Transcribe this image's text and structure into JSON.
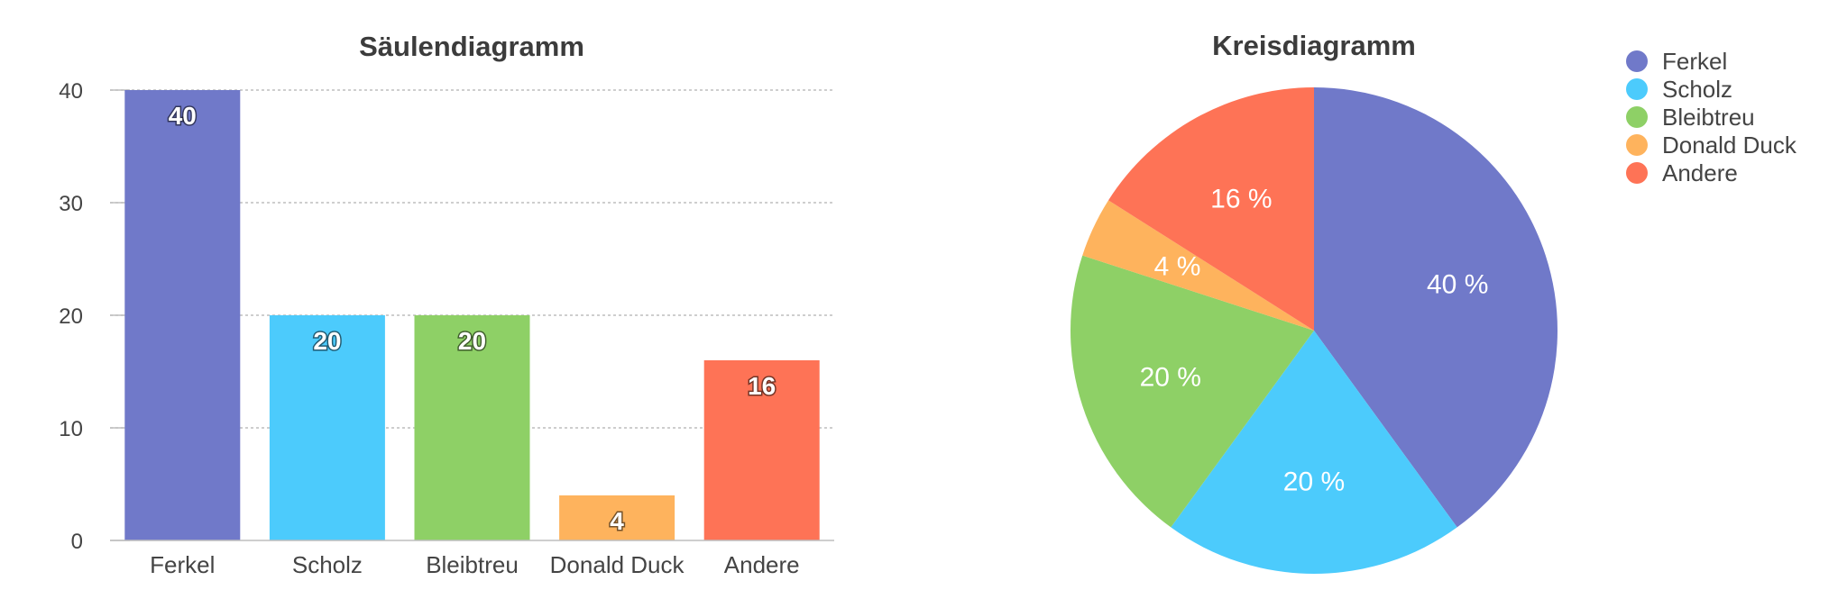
{
  "chart_data": [
    {
      "type": "bar",
      "title": "Säulendiagramm",
      "categories": [
        "Ferkel",
        "Scholz",
        "Bleibtreu",
        "Donald Duck",
        "Andere"
      ],
      "values": [
        40,
        20,
        20,
        4,
        16
      ],
      "data_labels": [
        "40",
        "20",
        "20",
        "4",
        "16"
      ],
      "colors": [
        "#7079c9",
        "#4ccbfc",
        "#8ed066",
        "#feb35d",
        "#fe7356"
      ],
      "ylim": [
        0,
        40
      ],
      "yticks": [
        "0",
        "10",
        "20",
        "30",
        "40"
      ],
      "grid": true,
      "xlabel": "",
      "ylabel": ""
    },
    {
      "type": "pie",
      "title": "Kreisdiagramm",
      "categories": [
        "Ferkel",
        "Scholz",
        "Bleibtreu",
        "Donald Duck",
        "Andere"
      ],
      "values": [
        40,
        20,
        20,
        4,
        16
      ],
      "data_labels": [
        "40 %",
        "20 %",
        "20 %",
        "4 %",
        "16 %"
      ],
      "colors": [
        "#7079c9",
        "#4ccbfc",
        "#8ed066",
        "#feb35d",
        "#fe7356"
      ],
      "legend_position": "top-right"
    }
  ]
}
